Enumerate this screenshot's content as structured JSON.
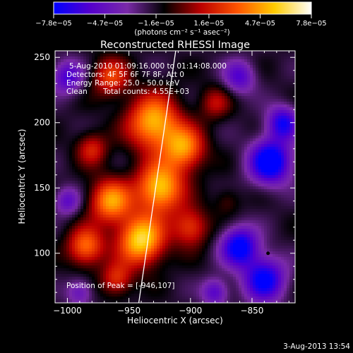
{
  "colorbar": {
    "ticks": [
      "−7.8e−05",
      "−4.7e−05",
      "−1.6e−05",
      "1.6e−05",
      "4.7e−05",
      "7.8e−05"
    ],
    "tick_values": [
      -7.8e-05,
      -4.7e-05,
      -1.6e-05,
      1.6e-05,
      4.7e-05,
      7.8e-05
    ],
    "range": [
      -7.8e-05,
      7.8e-05
    ],
    "unit_label": "(photons cm⁻² s⁻¹ asec⁻²)",
    "colors": [
      "#0000ff",
      "#5500cc",
      "#7a2aa8",
      "#000000",
      "#bb0000",
      "#ff5500",
      "#ffcc00",
      "#ffffff"
    ]
  },
  "chart_data": {
    "type": "heatmap",
    "title": "Reconstructed RHESSI Image",
    "xlabel": "Heliocentric X (arcsec)",
    "ylabel": "Heliocentric Y (arcsec)",
    "xlim": [
      -1010,
      -815
    ],
    "ylim": [
      62,
      255
    ],
    "x_ticks": [
      -1000,
      -950,
      -900,
      -850
    ],
    "x_tick_labels": [
      "−1000",
      "−950",
      "−900",
      "−850"
    ],
    "y_ticks": [
      100,
      150,
      200,
      250
    ],
    "y_tick_labels": [
      "100",
      "150",
      "200",
      "250"
    ],
    "annotations": {
      "time_range": "5-Aug-2010 01:09:16.000 to 01:14:08.000",
      "detectors": "Detectors: 4F 5F 6F 7F 8F, Att 0",
      "energy_range": "Energy Range: 25.0 - 50.0 keV",
      "clean_label": "Clean",
      "total_counts": "Total counts: 4.55E+03",
      "peak": "Position of Peak = [-946,107]"
    },
    "limb_line": [
      [
        -942,
        62
      ],
      [
        -912,
        255
      ]
    ],
    "marker": [
      -837,
      100
    ],
    "hotspots": [
      {
        "x": -985,
        "y": 105,
        "r": 14,
        "v": 0.7
      },
      {
        "x": -965,
        "y": 140,
        "r": 16,
        "v": 0.8
      },
      {
        "x": -940,
        "y": 110,
        "r": 18,
        "v": 1.0
      },
      {
        "x": -925,
        "y": 150,
        "r": 18,
        "v": 0.95
      },
      {
        "x": -930,
        "y": 200,
        "r": 20,
        "v": 0.9
      },
      {
        "x": -905,
        "y": 180,
        "r": 16,
        "v": 0.75
      },
      {
        "x": -965,
        "y": 235,
        "r": 14,
        "v": 0.55
      },
      {
        "x": -900,
        "y": 120,
        "r": 14,
        "v": 0.55
      },
      {
        "x": -960,
        "y": 80,
        "r": 12,
        "v": 0.5
      },
      {
        "x": -880,
        "y": 215,
        "r": 12,
        "v": 0.35
      },
      {
        "x": -980,
        "y": 180,
        "r": 12,
        "v": 0.45
      },
      {
        "x": -870,
        "y": 140,
        "r": 10,
        "v": 0.2
      }
    ],
    "coldspots": [
      {
        "x": -835,
        "y": 170,
        "r": 16,
        "v": -0.95
      },
      {
        "x": -860,
        "y": 105,
        "r": 14,
        "v": -0.85
      },
      {
        "x": -840,
        "y": 80,
        "r": 16,
        "v": -0.8
      },
      {
        "x": -825,
        "y": 200,
        "r": 12,
        "v": -0.7
      },
      {
        "x": -860,
        "y": 235,
        "r": 12,
        "v": -0.5
      },
      {
        "x": -1000,
        "y": 235,
        "r": 12,
        "v": -0.55
      },
      {
        "x": -1000,
        "y": 140,
        "r": 10,
        "v": -0.45
      },
      {
        "x": -880,
        "y": 70,
        "r": 10,
        "v": -0.5
      },
      {
        "x": -990,
        "y": 70,
        "r": 10,
        "v": -0.4
      }
    ]
  },
  "footer": {
    "date": "3-Aug-2013 13:54"
  }
}
